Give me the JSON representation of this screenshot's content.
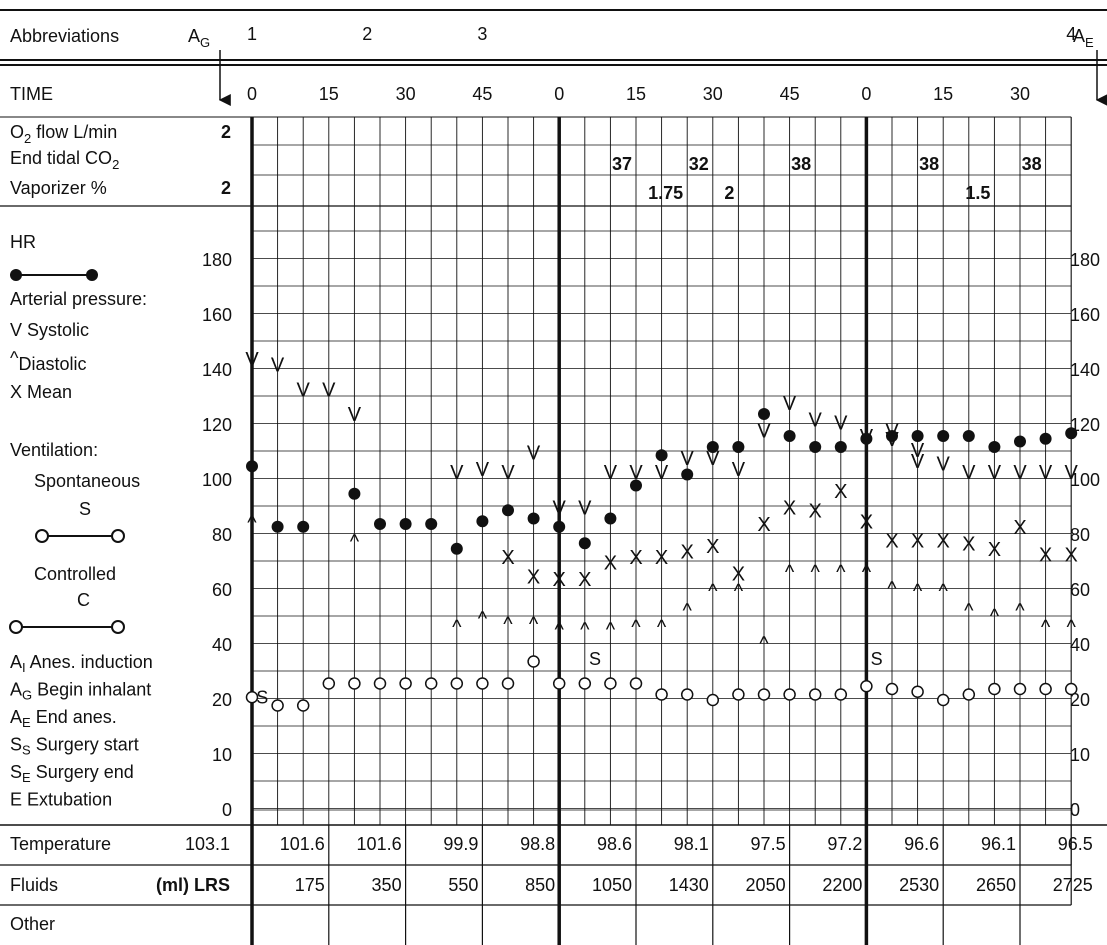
{
  "header": {
    "abbreviations_label": "Abbreviations",
    "time_label": "TIME",
    "ag_main": "A",
    "ag_sub": "G",
    "ae_main": "A",
    "ae_sub": "E",
    "event_markers": [
      {
        "label": "1",
        "slot": 0
      },
      {
        "label": "2",
        "slot": 4.5
      },
      {
        "label": "3",
        "slot": 9
      },
      {
        "label": "4",
        "slot": 32
      }
    ],
    "time_ticks": [
      "0",
      "15",
      "30",
      "45",
      "0",
      "15",
      "30",
      "45",
      "0",
      "15",
      "30"
    ]
  },
  "gas": {
    "o2_label_pre": "O",
    "o2_label_sub": "2",
    "o2_label_post": " flow  L/min",
    "etco2_label_pre": "End tidal CO",
    "etco2_label_sub": "2",
    "vaporizer_label": "Vaporizer %",
    "o2_initial": "2",
    "vaporizer_initial": "2",
    "etco2_values": [
      {
        "v": "37",
        "slot": 15
      },
      {
        "v": "32",
        "slot": 18
      },
      {
        "v": "38",
        "slot": 22
      },
      {
        "v": "38",
        "slot": 27
      },
      {
        "v": "38",
        "slot": 31
      }
    ],
    "vaporizer_values": [
      {
        "v": "1.75",
        "slot": 17
      },
      {
        "v": "2",
        "slot": 19
      },
      {
        "v": "1.5",
        "slot": 29
      }
    ]
  },
  "legend": {
    "hr": "HR",
    "arterial": "Arterial pressure:",
    "systolic": "V Systolic",
    "diastolic_mark": "^",
    "diastolic": "Diastolic",
    "mean": "X Mean",
    "ventilation": "Ventilation:",
    "spontaneous": "Spontaneous",
    "s_letter": "S",
    "controlled": "Controlled",
    "c_letter": "C",
    "abbrevs": [
      {
        "main": "A",
        "sub": "I",
        "text": " Anes. induction"
      },
      {
        "main": "A",
        "sub": "G",
        "text": " Begin inhalant"
      },
      {
        "main": "A",
        "sub": "E",
        "text": " End anes."
      },
      {
        "main": "S",
        "sub": "S",
        "text": " Surgery start"
      },
      {
        "main": "S",
        "sub": "E",
        "text": " Surgery end"
      },
      {
        "main": "E",
        "sub": "",
        "text": " Extubation"
      }
    ]
  },
  "chart_data": {
    "type": "scatter",
    "title": "",
    "x_unit_note": "each slot = 5 minutes; slot 0 = time 0",
    "ylim": [
      0,
      200
    ],
    "y_ticks": [
      0,
      10,
      20,
      40,
      60,
      80,
      100,
      120,
      140,
      160,
      180
    ],
    "series": [
      {
        "name": "HR",
        "marker": "filled-circle",
        "slots": [
          0,
          1,
          2,
          4,
          5,
          6,
          7,
          8,
          9,
          10,
          11,
          12,
          13,
          14,
          15,
          16,
          17,
          18,
          19,
          20,
          21,
          22,
          23,
          24,
          25,
          26,
          27,
          28,
          29,
          30,
          31,
          32
        ],
        "values": [
          105,
          83,
          83,
          95,
          84,
          84,
          84,
          75,
          85,
          89,
          86,
          83,
          77,
          86,
          98,
          109,
          102,
          112,
          112,
          124,
          116,
          112,
          112,
          115,
          116,
          116,
          116,
          116,
          112,
          114,
          115,
          117
        ]
      },
      {
        "name": "Systolic",
        "marker": "v",
        "slots": [
          0,
          1,
          2,
          3,
          4,
          8,
          9,
          10,
          11,
          12,
          13,
          14,
          15,
          16,
          17,
          18,
          19,
          20,
          21,
          22,
          23,
          24,
          25,
          26,
          27,
          28,
          29,
          30,
          31,
          32
        ],
        "values": [
          144,
          142,
          133,
          133,
          124,
          103,
          104,
          103,
          110,
          90,
          90,
          103,
          103,
          103,
          108,
          108,
          104,
          118,
          128,
          122,
          121,
          116,
          115,
          107,
          106,
          103,
          103,
          103,
          103,
          103
        ],
        "extra": [
          {
            "slot": 25,
            "value": 118
          },
          {
            "slot": 26,
            "value": 111
          }
        ]
      },
      {
        "name": "Diastolic",
        "marker": "^",
        "slots": [
          0,
          1,
          2,
          4,
          8,
          9,
          10,
          11,
          12,
          13,
          14,
          15,
          16,
          17,
          18,
          19,
          20,
          21,
          22,
          23,
          24,
          25,
          26,
          27,
          28,
          29,
          30,
          31,
          32
        ],
        "values": [
          87,
          84,
          84,
          80,
          49,
          52,
          50,
          50,
          48,
          48,
          48,
          49,
          49,
          55,
          62,
          62,
          43,
          69,
          69,
          69,
          69,
          63,
          62,
          62,
          55,
          53,
          55,
          49,
          49
        ]
      },
      {
        "name": "Mean",
        "marker": "x",
        "slots": [
          10,
          11,
          12,
          13,
          14,
          15,
          16,
          17,
          18,
          19,
          20,
          21,
          22,
          23,
          24,
          25,
          26,
          27,
          28,
          29,
          30,
          31,
          32
        ],
        "values": [
          72,
          65,
          64,
          64,
          70,
          72,
          72,
          74,
          76,
          66,
          84,
          90,
          89,
          96,
          85,
          78,
          78,
          78,
          77,
          75,
          83,
          73,
          73
        ]
      },
      {
        "name": "Ventilation",
        "marker": "open-circle",
        "slots": [
          0,
          1,
          2,
          3,
          4,
          5,
          6,
          7,
          8,
          9,
          10,
          11,
          12,
          13,
          14,
          15,
          16,
          17,
          18,
          19,
          20,
          21,
          22,
          23,
          24,
          25,
          26,
          27,
          28,
          29,
          30,
          31,
          32
        ],
        "values": [
          21,
          19,
          19,
          26,
          26,
          26,
          26,
          26,
          26,
          26,
          26,
          34,
          26,
          26,
          26,
          26,
          22,
          22,
          20,
          22,
          22,
          22,
          22,
          22,
          25,
          24,
          23,
          20,
          22,
          24,
          24,
          24,
          24
        ]
      }
    ],
    "annotations": [
      {
        "text": "S",
        "slot": 0.4,
        "value": 21
      },
      {
        "text": "S",
        "slot": 13.4,
        "value": 35
      },
      {
        "text": "S",
        "slot": 24.4,
        "value": 35
      }
    ]
  },
  "bottom": {
    "temperature_label": "Temperature",
    "temperature_initial": "103.1",
    "temperature_values": [
      "101.6",
      "101.6",
      "99.9",
      "98.8",
      "98.6",
      "98.1",
      "97.5",
      "97.2",
      "96.6",
      "96.1",
      "96.5"
    ],
    "fluids_label": "Fluids",
    "fluids_unit": "(ml) LRS",
    "fluids_values": [
      "175",
      "350",
      "550",
      "850",
      "1050",
      "1430",
      "2050",
      "2200",
      "2530",
      "2650",
      "2725"
    ],
    "other_label": "Other"
  }
}
